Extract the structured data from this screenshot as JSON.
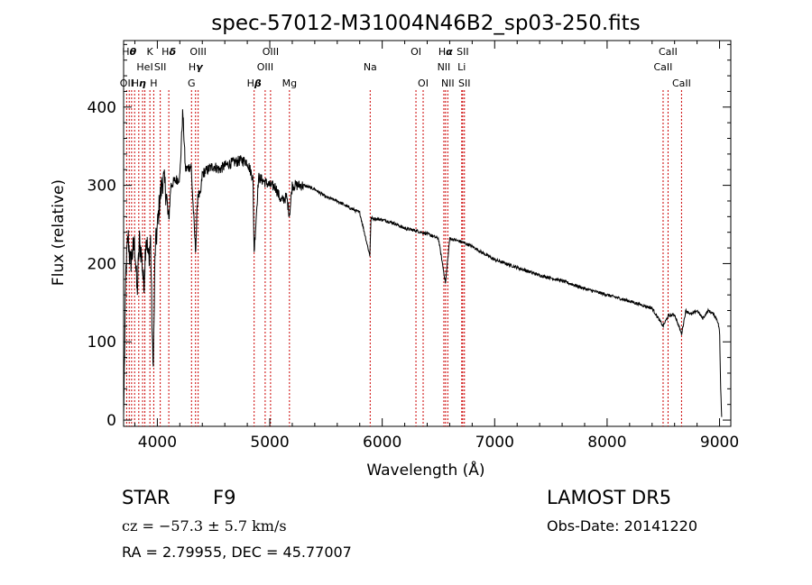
{
  "chart_data": {
    "type": "line",
    "title": "spec-57012-M31004N46B2_sp03-250.fits",
    "xlabel": "Wavelength (Å)",
    "ylabel": "Flux (relative)",
    "xlim": [
      3700,
      9100
    ],
    "ylim": [
      -8,
      485
    ],
    "xticks": [
      4000,
      5000,
      6000,
      7000,
      8000,
      9000
    ],
    "yticks": [
      0,
      100,
      200,
      300,
      400
    ],
    "grid": false,
    "line_color": "#000000",
    "marker_color": "#cc0000",
    "series": [
      {
        "x": [
          3700,
          3720,
          3740,
          3760,
          3780,
          3800,
          3820,
          3840,
          3860,
          3880,
          3900,
          3920,
          3940,
          3960,
          3970,
          3980,
          4000,
          4020,
          4050,
          4080,
          4100,
          4120,
          4150,
          4200,
          4226,
          4250,
          4300,
          4340,
          4360,
          4383,
          4400,
          4450,
          4500,
          4550,
          4600,
          4650,
          4700,
          4750,
          4800,
          4850,
          4861,
          4900,
          4950,
          5000,
          5050,
          5100,
          5150,
          5175,
          5200,
          5300,
          5400,
          5500,
          5600,
          5700,
          5800,
          5890,
          5900,
          6000,
          6100,
          6200,
          6300,
          6400,
          6500,
          6563,
          6600,
          6700,
          6800,
          6900,
          7000,
          7200,
          7400,
          7600,
          7800,
          8000,
          8200,
          8400,
          8498,
          8542,
          8600,
          8662,
          8700,
          8750,
          8800,
          8850,
          8900,
          8950,
          8980,
          9000,
          9010,
          9020
        ],
        "y": [
          5,
          190,
          235,
          200,
          215,
          225,
          160,
          230,
          210,
          170,
          240,
          205,
          230,
          65,
          120,
          215,
          245,
          280,
          310,
          290,
          250,
          300,
          305,
          310,
          395,
          320,
          325,
          215,
          290,
          285,
          315,
          320,
          325,
          320,
          325,
          328,
          330,
          332,
          330,
          310,
          215,
          310,
          305,
          300,
          298,
          280,
          285,
          262,
          300,
          300,
          295,
          285,
          280,
          272,
          265,
          210,
          258,
          256,
          252,
          245,
          242,
          238,
          232,
          175,
          232,
          228,
          222,
          213,
          205,
          195,
          185,
          178,
          168,
          160,
          152,
          143,
          120,
          133,
          135,
          110,
          140,
          135,
          140,
          130,
          140,
          135,
          128,
          115,
          40,
          0
        ]
      }
    ],
    "lines": [
      {
        "x": 3727,
        "row": 2,
        "name": "OII",
        "label": "OII"
      },
      {
        "x": 3750,
        "row": 0,
        "name": "Hθ",
        "label": "H",
        "greek": "θ"
      },
      {
        "x": 3771,
        "row": 0,
        "name": "",
        "label": ""
      },
      {
        "x": 3798,
        "row": 1,
        "name": "",
        "label": ""
      },
      {
        "x": 3835,
        "row": 2,
        "name": "Hη",
        "label": "H",
        "greek": "η"
      },
      {
        "x": 3869,
        "row": 1,
        "name": "",
        "label": ""
      },
      {
        "x": 3889,
        "row": 1,
        "name": "HeI",
        "label": "HeI"
      },
      {
        "x": 3934,
        "row": 0,
        "name": "K",
        "label": "K"
      },
      {
        "x": 3968,
        "row": 2,
        "name": "H",
        "label": "H"
      },
      {
        "x": 4026,
        "row": 1,
        "name": "SII",
        "label": "SII"
      },
      {
        "x": 4102,
        "row": 0,
        "name": "Hδ",
        "label": "H",
        "greek": "δ"
      },
      {
        "x": 4304,
        "row": 2,
        "name": "G",
        "label": "G"
      },
      {
        "x": 4340,
        "row": 1,
        "name": "Hγ",
        "label": "H",
        "greek": "γ"
      },
      {
        "x": 4363,
        "row": 0,
        "name": "OIII",
        "label": "OIII"
      },
      {
        "x": 4861,
        "row": 2,
        "name": "Hβ",
        "label": "H",
        "greek": "β"
      },
      {
        "x": 4959,
        "row": 1,
        "name": "OIII",
        "label": "OIII"
      },
      {
        "x": 5007,
        "row": 0,
        "name": "OIII",
        "label": "OIII"
      },
      {
        "x": 5175,
        "row": 2,
        "name": "Mg",
        "label": "Mg"
      },
      {
        "x": 5893,
        "row": 1,
        "name": "Na",
        "label": "Na"
      },
      {
        "x": 6300,
        "row": 0,
        "name": "OI",
        "label": "OI"
      },
      {
        "x": 6364,
        "row": 2,
        "name": "OI",
        "label": "OI"
      },
      {
        "x": 6548,
        "row": 1,
        "name": "NII",
        "label": "NII"
      },
      {
        "x": 6563,
        "row": 0,
        "name": "Hα",
        "label": "H",
        "greek": "α"
      },
      {
        "x": 6583,
        "row": 2,
        "name": "NII",
        "label": "NII"
      },
      {
        "x": 6707,
        "row": 1,
        "name": "Li",
        "label": "Li"
      },
      {
        "x": 6716,
        "row": 0,
        "name": "SII",
        "label": "SII"
      },
      {
        "x": 6731,
        "row": 2,
        "name": "SII",
        "label": "SII"
      },
      {
        "x": 8498,
        "row": 1,
        "name": "CaII",
        "label": "CaII"
      },
      {
        "x": 8542,
        "row": 0,
        "name": "CaII",
        "label": "CaII"
      },
      {
        "x": 8662,
        "row": 2,
        "name": "CaII",
        "label": "CaII"
      }
    ]
  },
  "info": {
    "object_class": "STAR",
    "subclass": "F9",
    "survey": "LAMOST  DR5",
    "redshift": "cz = −57.3 ± 5.7 km/s",
    "obs_date": "Obs-Date: 20141220",
    "coords": "RA =    2.79955, DEC =  45.77007"
  }
}
